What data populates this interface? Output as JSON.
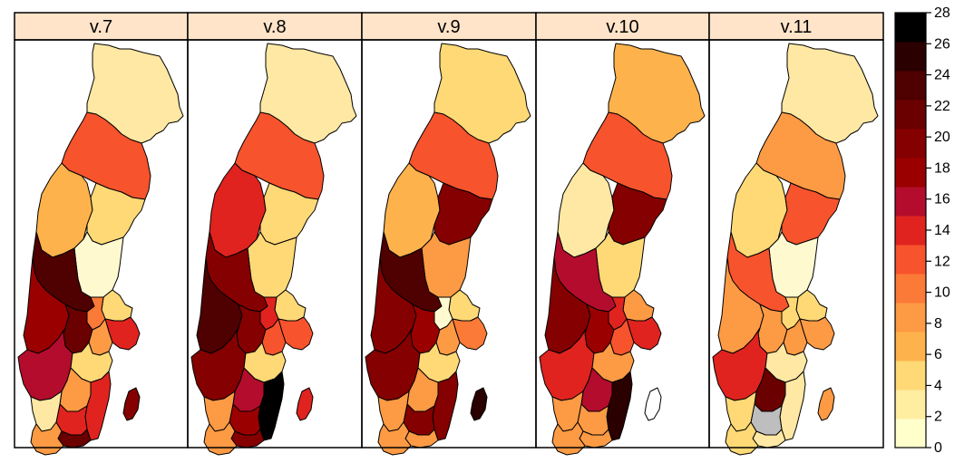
{
  "panels": [
    {
      "title": "v.7"
    },
    {
      "title": "v.8"
    },
    {
      "title": "v.9"
    },
    {
      "title": "v.10"
    },
    {
      "title": "v.11"
    }
  ],
  "colors": {
    "strip_background": "#ffe4c9",
    "border": "#000000",
    "missing": "#bebebe"
  },
  "legend": {
    "ticks": [
      "0",
      "2",
      "4",
      "6",
      "8",
      "10",
      "12",
      "14",
      "16",
      "18",
      "20",
      "22",
      "24",
      "26",
      "28"
    ],
    "bins": [
      "#ffffcc",
      "#ffeda0",
      "#fed976",
      "#feb24c",
      "#fd9a44",
      "#fc7a37",
      "#f7532c",
      "#e0231e",
      "#b30c2c",
      "#9b0000",
      "#850000",
      "#6a0000",
      "#4f0000",
      "#2b0000",
      "#000000"
    ]
  },
  "regions": [
    "norrbotten",
    "vasterbotten",
    "jamtland",
    "vasternorrland",
    "gavleborg",
    "dalarna",
    "uppsala",
    "varmland",
    "vastmanland",
    "stockholm",
    "orebro",
    "sodermanland",
    "vastra_gotaland",
    "ostergotland",
    "jonkoping",
    "kalmar",
    "gotland",
    "kronoberg",
    "halland",
    "blekinge",
    "skane"
  ],
  "region_colors": [
    [
      "#fee8a3",
      "#f7532c",
      "#feb24c",
      "#fed976",
      "#fff9d0",
      "#4f0000",
      "#fed976",
      "#9b0000",
      "#fc7a37",
      "#e0231e",
      "#6a0000",
      "#fd9a44",
      "#b30c2c",
      "#fed976",
      "#fd9a44",
      "#e0231e",
      "#850000",
      "#e0231e",
      "#fee8a3",
      "#6a0000",
      "#fd9a44"
    ],
    [
      "#fee8a3",
      "#f7532c",
      "#e0231e",
      "#fed976",
      "#fed976",
      "#850000",
      "#fed976",
      "#4f0000",
      "#e0231e",
      "#f7532c",
      "#850000",
      "#f7532c",
      "#850000",
      "#fed976",
      "#b30c2c",
      "#000000",
      "#e0231e",
      "#9b0000",
      "#fd9a44",
      "#850000",
      "#fd9a44"
    ],
    [
      "#fed976",
      "#f7532c",
      "#feb24c",
      "#850000",
      "#fd9a44",
      "#4f0000",
      "#fed976",
      "#850000",
      "#fff9d0",
      "#fc7a37",
      "#9b0000",
      "#fd9a44",
      "#850000",
      "#fed976",
      "#fd9a44",
      "#850000",
      "#2b0000",
      "#850000",
      "#fd9a44",
      "#fd9a44",
      "#fd9a44"
    ],
    [
      "#feb24c",
      "#f7532c",
      "#fee8a3",
      "#850000",
      "#fed976",
      "#b30c2c",
      "#fd9a44",
      "#850000",
      "#e0231e",
      "#e0231e",
      "#9b0000",
      "#f7532c",
      "#e0231e",
      "#fd9a44",
      "#b30c2c",
      "#2b0000",
      "#ffffff",
      "#fd9a44",
      "#fd9a44",
      "#fd9a44",
      "#fd9a44"
    ],
    [
      "#fee8a3",
      "#fd9a44",
      "#fed976",
      "#f7532c",
      "#fff9d0",
      "#f7532c",
      "#fed976",
      "#fd9a44",
      "#fed976",
      "#fd9a44",
      "#fd9a44",
      "#fd9a44",
      "#e0231e",
      "#fee8a3",
      "#6a0000",
      "#fee8a3",
      "#fd9a44",
      "#bebebe",
      "#fed976",
      "#fee8a3",
      "#fed976"
    ]
  ]
}
